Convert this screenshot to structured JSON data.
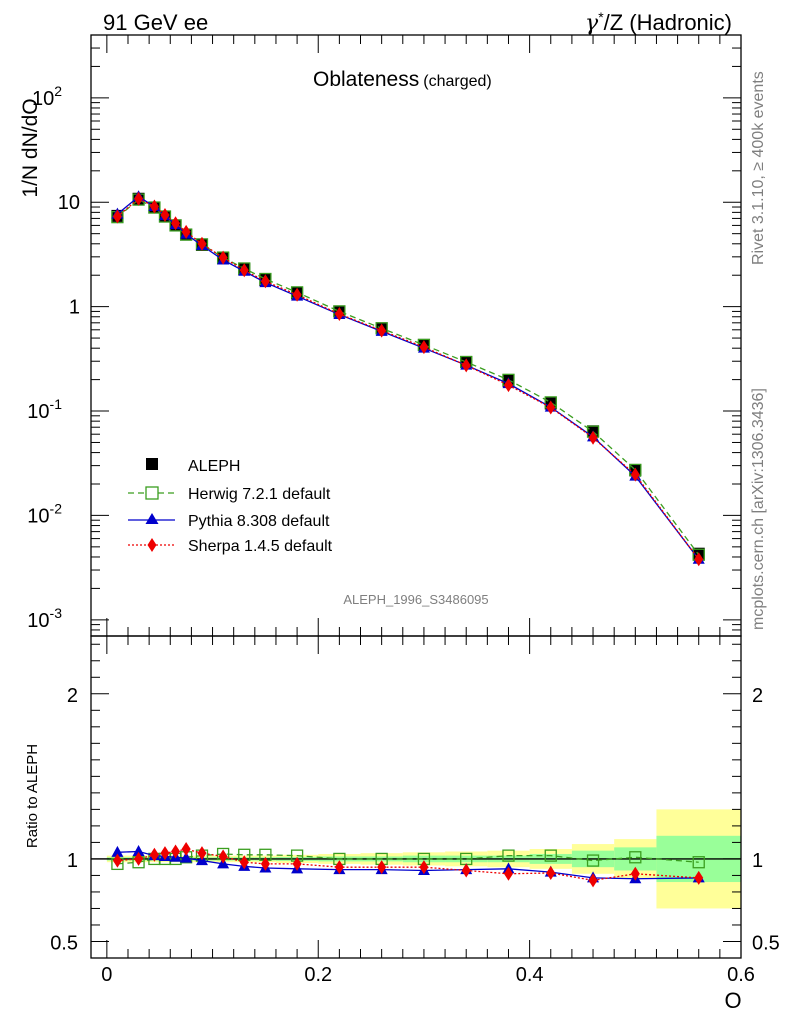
{
  "header": {
    "left": "91 GeV ee",
    "right_gamma": "γ",
    "right_star": "*",
    "right_rest": "/Z (Hadronic)"
  },
  "side_text": {
    "rivet": "Rivet 3.1.10, ≥ 400k events",
    "mcplots": "mcplots.cern.ch [arXiv:1306.3436]"
  },
  "chart_data": [
    {
      "type": "line",
      "scale": "log",
      "title": "Oblateness",
      "subtitle": "(charged)",
      "ylabel": "1/N dN/dO",
      "analysis_label": "ALEPH_1996_S3486095",
      "xlim": [
        -0.015,
        0.6
      ],
      "ylim": [
        0.0007,
        400
      ],
      "yticks": [
        {
          "value": 0.001,
          "base": "10",
          "exp": "-3"
        },
        {
          "value": 0.01,
          "base": "10",
          "exp": "-2"
        },
        {
          "value": 0.1,
          "base": "10",
          "exp": "-1"
        },
        {
          "value": 1,
          "base": "1",
          "exp": ""
        },
        {
          "value": 10,
          "base": "10",
          "exp": ""
        },
        {
          "value": 100,
          "base": "10",
          "exp": "2"
        }
      ],
      "x": [
        0.01,
        0.03,
        0.045,
        0.055,
        0.065,
        0.075,
        0.09,
        0.11,
        0.13,
        0.15,
        0.18,
        0.22,
        0.26,
        0.3,
        0.34,
        0.38,
        0.42,
        0.46,
        0.5,
        0.56
      ],
      "series": [
        {
          "name": "ALEPH",
          "color": "#000000",
          "marker": "square-filled",
          "values": [
            7.4,
            10.8,
            8.9,
            7.3,
            6.0,
            4.9,
            3.9,
            2.9,
            2.28,
            1.8,
            1.34,
            0.9,
            0.62,
            0.43,
            0.295,
            0.195,
            0.118,
            0.064,
            0.027,
            0.0043
          ]
        },
        {
          "name": "Herwig 7.2.1 default",
          "color": "#3a9e1f",
          "marker": "square-open",
          "dash": "6,4",
          "values": [
            7.2,
            10.6,
            8.9,
            7.3,
            6.0,
            4.9,
            3.95,
            2.95,
            2.32,
            1.84,
            1.37,
            0.9,
            0.62,
            0.43,
            0.295,
            0.199,
            0.121,
            0.0635,
            0.0273,
            0.0042
          ]
        },
        {
          "name": "Pythia 8.308 default",
          "color": "#0000cc",
          "marker": "triangle",
          "values": [
            7.7,
            11.3,
            9.1,
            7.45,
            6.1,
            4.95,
            3.85,
            2.8,
            2.18,
            1.7,
            1.26,
            0.84,
            0.58,
            0.4,
            0.275,
            0.183,
            0.109,
            0.0565,
            0.0238,
            0.0038
          ]
        },
        {
          "name": "Sherpa 1.4.5 default",
          "color": "#ee0000",
          "marker": "diamond",
          "dash": "2,2",
          "values": [
            7.3,
            10.8,
            9.1,
            7.55,
            6.3,
            5.2,
            4.0,
            2.95,
            2.23,
            1.75,
            1.3,
            0.85,
            0.59,
            0.41,
            0.274,
            0.177,
            0.108,
            0.0555,
            0.0246,
            0.0038
          ]
        }
      ]
    },
    {
      "type": "line",
      "ylabel": "Ratio to ALEPH",
      "xlabel": "O",
      "xlim": [
        -0.015,
        0.6
      ],
      "ylim": [
        0.4,
        2.35
      ],
      "yticks": [
        0.5,
        1,
        2
      ],
      "yticklabels": [
        "0.5",
        "1",
        "2"
      ],
      "xticks": [
        0,
        0.2,
        0.4,
        0.6
      ],
      "xticklabels": [
        "0",
        "0.2",
        "0.4",
        "0.6"
      ],
      "x": [
        0.01,
        0.03,
        0.045,
        0.055,
        0.065,
        0.075,
        0.09,
        0.11,
        0.13,
        0.15,
        0.18,
        0.22,
        0.26,
        0.3,
        0.34,
        0.38,
        0.42,
        0.46,
        0.5,
        0.56
      ],
      "bin_edges": [
        0,
        0.02,
        0.04,
        0.05,
        0.06,
        0.07,
        0.08,
        0.1,
        0.12,
        0.14,
        0.16,
        0.2,
        0.24,
        0.28,
        0.32,
        0.36,
        0.4,
        0.44,
        0.48,
        0.52,
        0.6
      ],
      "band_yellow": [
        0.02,
        0.02,
        0.02,
        0.02,
        0.02,
        0.02,
        0.02,
        0.02,
        0.02,
        0.02,
        0.025,
        0.03,
        0.035,
        0.04,
        0.045,
        0.05,
        0.06,
        0.09,
        0.12,
        0.3
      ],
      "band_green": [
        0.01,
        0.01,
        0.01,
        0.01,
        0.01,
        0.01,
        0.01,
        0.01,
        0.01,
        0.01,
        0.012,
        0.015,
        0.015,
        0.02,
        0.02,
        0.02,
        0.03,
        0.05,
        0.07,
        0.14
      ],
      "series": [
        {
          "name": "Herwig 7.2.1 default",
          "color": "#3a9e1f",
          "marker": "square-open",
          "dash": "6,4",
          "values": [
            0.97,
            0.98,
            1.0,
            1.0,
            1.0,
            1.01,
            1.02,
            1.03,
            1.025,
            1.025,
            1.02,
            1.0,
            1.0,
            1.0,
            1.0,
            1.02,
            1.02,
            0.99,
            1.01,
            0.98
          ]
        },
        {
          "name": "Pythia 8.308 default",
          "color": "#0000cc",
          "marker": "triangle",
          "values": [
            1.04,
            1.045,
            1.02,
            1.015,
            1.01,
            1.005,
            0.99,
            0.97,
            0.955,
            0.945,
            0.94,
            0.935,
            0.935,
            0.93,
            0.935,
            0.94,
            0.92,
            0.885,
            0.88,
            0.885
          ]
        },
        {
          "name": "Sherpa 1.4.5 default",
          "color": "#ee0000",
          "marker": "diamond",
          "dash": "2,2",
          "values": [
            0.99,
            1.0,
            1.025,
            1.035,
            1.045,
            1.06,
            1.035,
            1.015,
            0.98,
            0.97,
            0.97,
            0.95,
            0.95,
            0.95,
            0.93,
            0.91,
            0.915,
            0.87,
            0.91,
            0.885
          ]
        }
      ]
    }
  ]
}
